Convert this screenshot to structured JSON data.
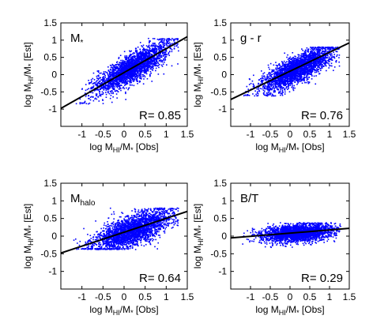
{
  "chart_data": [
    {
      "type": "scatter",
      "panel_label_main": "M",
      "panel_label_sub": "*",
      "r_label": "R= 0.85",
      "xlim": [
        -1.5,
        1.5
      ],
      "ylim": [
        -1.5,
        1.5
      ],
      "xticks": [
        "-1",
        "-0.5",
        "0",
        "0.5",
        "1",
        "1.5"
      ],
      "yticks": [
        "-1",
        "-0.5",
        "0",
        "0.5",
        "1",
        "1.5"
      ],
      "xlabel": {
        "main": "log M",
        "sub": "HI",
        "rest": "/M",
        "sub2": "*",
        "tail": " [Obs]"
      },
      "ylabel": {
        "main": "log M",
        "sub": "HI",
        "rest": "/M",
        "sub2": "*",
        "tail": " [Est]"
      },
      "fit_line": {
        "x": [
          -1.5,
          1.5
        ],
        "y": [
          -0.98,
          1.1
        ]
      },
      "point_color": "#0000ff",
      "cloud": {
        "x_min": -1.2,
        "x_max": 1.3,
        "x_center": 0.2,
        "x_spread": 0.45,
        "slope": 0.68,
        "intercept": 0.06,
        "scatter": 0.2,
        "y_min": -0.85,
        "y_max": 1.05
      }
    },
    {
      "type": "scatter",
      "panel_label_main": "g - r",
      "panel_label_sub": "",
      "r_label": "R= 0.76",
      "xlim": [
        -1.5,
        1.5
      ],
      "ylim": [
        -1.5,
        1.5
      ],
      "xticks": [
        "-1",
        "-0.5",
        "0",
        "0.5",
        "1",
        "1.5"
      ],
      "yticks": [
        "-1",
        "-0.5",
        "0",
        "0.5",
        "1",
        "1.5"
      ],
      "xlabel": {
        "main": "log M",
        "sub": "HI",
        "rest": "/M",
        "sub2": "*",
        "tail": " [Obs]"
      },
      "ylabel": {
        "main": "log M",
        "sub": "HI",
        "rest": "/M",
        "sub2": "*",
        "tail": " [Est]"
      },
      "fit_line": {
        "x": [
          -1.5,
          1.5
        ],
        "y": [
          -0.72,
          0.92
        ]
      },
      "point_color": "#0000ff",
      "cloud": {
        "x_min": -1.2,
        "x_max": 1.3,
        "x_center": 0.2,
        "x_spread": 0.45,
        "slope": 0.55,
        "intercept": 0.06,
        "scatter": 0.2,
        "y_min": -0.62,
        "y_max": 0.8
      }
    },
    {
      "type": "scatter",
      "panel_label_main": "M",
      "panel_label_sub": "halo",
      "r_label": "R= 0.64",
      "xlim": [
        -1.5,
        1.5
      ],
      "ylim": [
        -1.5,
        1.5
      ],
      "xticks": [
        "-1",
        "-0.5",
        "0",
        "0.5",
        "1",
        "1.5"
      ],
      "yticks": [
        "-1",
        "-0.5",
        "0",
        "0.5",
        "1",
        "1.5"
      ],
      "xlabel": {
        "main": "log M",
        "sub": "HI",
        "rest": "/M",
        "sub2": "*",
        "tail": " [Obs]"
      },
      "ylabel": {
        "main": "log M",
        "sub": "HI",
        "rest": "/M",
        "sub2": "*",
        "tail": " [Est]"
      },
      "fit_line": {
        "x": [
          -1.5,
          1.5
        ],
        "y": [
          -0.48,
          0.7
        ]
      },
      "point_color": "#0000ff",
      "cloud": {
        "x_min": -1.2,
        "x_max": 1.3,
        "x_center": 0.2,
        "x_spread": 0.45,
        "slope": 0.42,
        "intercept": 0.08,
        "scatter": 0.22,
        "y_min": -0.38,
        "y_max": 0.8
      }
    },
    {
      "type": "scatter",
      "panel_label_main": "B/T",
      "panel_label_sub": "",
      "r_label": "R= 0.29",
      "xlim": [
        -1.5,
        1.5
      ],
      "ylim": [
        -1.5,
        1.5
      ],
      "xticks": [
        "-1",
        "-0.5",
        "0",
        "0.5",
        "1",
        "1.5"
      ],
      "yticks": [
        "-1",
        "-0.5",
        "0",
        "0.5",
        "1",
        "1.5"
      ],
      "xlabel": {
        "main": "log M",
        "sub": "HI",
        "rest": "/M",
        "sub2": "*",
        "tail": " [Obs]"
      },
      "ylabel": {
        "main": "log M",
        "sub": "HI",
        "rest": "/M",
        "sub2": "*",
        "tail": " [Est]"
      },
      "fit_line": {
        "x": [
          -1.5,
          1.5
        ],
        "y": [
          -0.05,
          0.22
        ]
      },
      "point_color": "#0000ff",
      "cloud": {
        "x_min": -1.2,
        "x_max": 1.3,
        "x_center": 0.2,
        "x_spread": 0.45,
        "slope": 0.08,
        "intercept": 0.07,
        "scatter": 0.12,
        "y_min": -0.32,
        "y_max": 0.38
      }
    }
  ]
}
